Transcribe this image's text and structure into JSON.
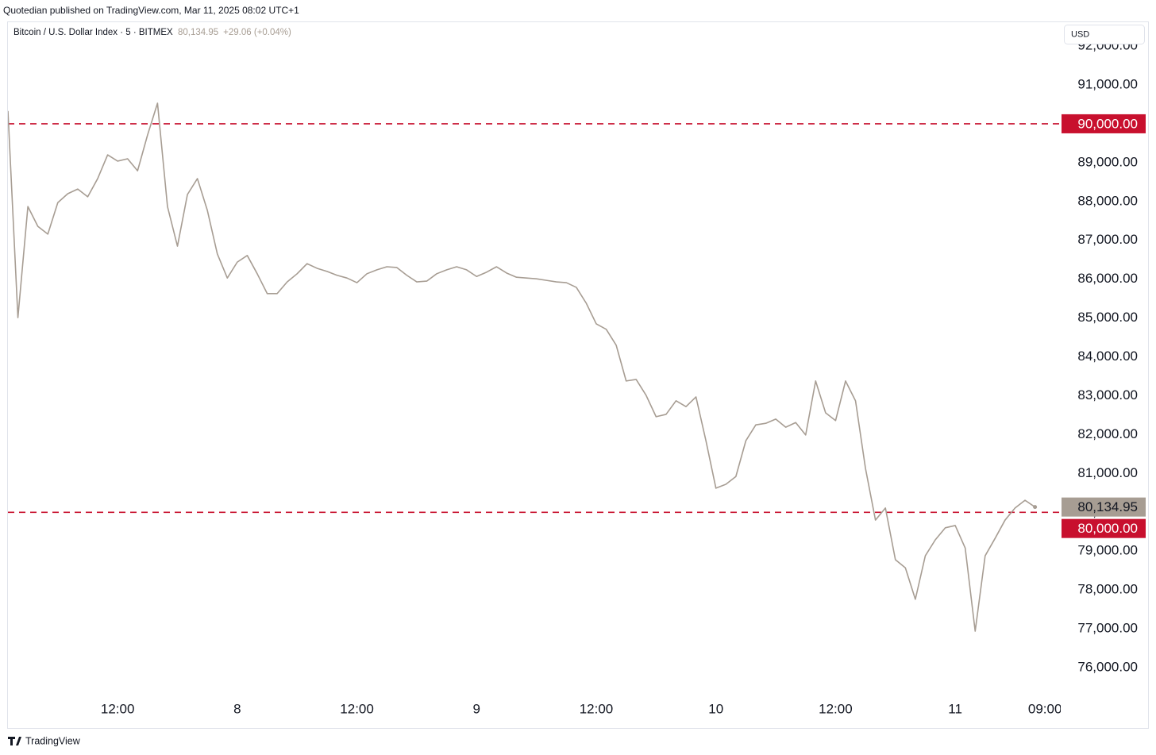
{
  "header": {
    "published": "Quotedian published on TradingView.com, Mar 11, 2025 08:02 UTC+1",
    "footer": "TradingView"
  },
  "chart_data": {
    "type": "line",
    "title": "Bitcoin / U.S. Dollar Index · 5 · BITMEX",
    "last_price": {
      "value": 80134.95,
      "label": "80,134.95"
    },
    "change": "+29.06 (+0.04%)",
    "currency": "USD",
    "x": [
      "7 01:00",
      "7 02:00",
      "7 03:00",
      "7 04:00",
      "7 05:00",
      "7 06:00",
      "7 07:00",
      "7 08:00",
      "7 09:00",
      "7 10:00",
      "7 11:00",
      "7 12:00",
      "7 13:00",
      "7 14:00",
      "7 15:00",
      "7 16:00",
      "7 17:00",
      "7 18:00",
      "7 19:00",
      "7 20:00",
      "7 21:00",
      "7 22:00",
      "7 23:00",
      "8 00:00",
      "8 01:00",
      "8 02:00",
      "8 03:00",
      "8 04:00",
      "8 05:00",
      "8 06:00",
      "8 07:00",
      "8 08:00",
      "8 09:00",
      "8 10:00",
      "8 11:00",
      "8 12:00",
      "8 13:00",
      "8 14:00",
      "8 15:00",
      "8 16:00",
      "8 17:00",
      "8 18:00",
      "8 19:00",
      "8 20:00",
      "8 21:00",
      "8 22:00",
      "8 23:00",
      "9 00:00",
      "9 01:00",
      "9 02:00",
      "9 03:00",
      "9 04:00",
      "9 05:00",
      "9 06:00",
      "9 07:00",
      "9 08:00",
      "9 09:00",
      "9 10:00",
      "9 11:00",
      "9 12:00",
      "9 13:00",
      "9 14:00",
      "9 15:00",
      "9 16:00",
      "9 17:00",
      "9 18:00",
      "9 19:00",
      "9 20:00",
      "9 21:00",
      "9 22:00",
      "9 23:00",
      "10 00:00",
      "10 01:00",
      "10 02:00",
      "10 03:00",
      "10 04:00",
      "10 05:00",
      "10 06:00",
      "10 07:00",
      "10 08:00",
      "10 09:00",
      "10 10:00",
      "10 11:00",
      "10 12:00",
      "10 13:00",
      "10 14:00",
      "10 15:00",
      "10 16:00",
      "10 17:00",
      "10 18:00",
      "10 19:00",
      "10 20:00",
      "10 21:00",
      "10 22:00",
      "10 23:00",
      "11 00:00",
      "11 01:00",
      "11 02:00",
      "11 03:00",
      "11 04:00",
      "11 05:00",
      "11 06:00",
      "11 07:00",
      "11 08:00"
    ],
    "series": [
      {
        "name": "Bitcoin / U.S. Dollar Index",
        "color": "#a79d93",
        "values": [
          90330,
          85010,
          87870,
          87360,
          87160,
          87970,
          88200,
          88320,
          88120,
          88590,
          89200,
          89040,
          89100,
          88790,
          89710,
          90530,
          87870,
          86850,
          88180,
          88590,
          87770,
          86650,
          86030,
          86440,
          86610,
          86140,
          85630,
          85630,
          85930,
          86140,
          86400,
          86280,
          86200,
          86100,
          86030,
          85910,
          86140,
          86240,
          86320,
          86300,
          86100,
          85930,
          85950,
          86140,
          86240,
          86320,
          86240,
          86070,
          86180,
          86320,
          86160,
          86050,
          86030,
          86010,
          85970,
          85930,
          85910,
          85790,
          85380,
          84850,
          84710,
          84300,
          83380,
          83420,
          83010,
          82460,
          82520,
          82870,
          82720,
          82970,
          81840,
          80620,
          80720,
          80920,
          81840,
          82250,
          82290,
          82400,
          82190,
          82310,
          81990,
          83380,
          82560,
          82360,
          83380,
          82870,
          81130,
          79800,
          80110,
          78780,
          78570,
          77760,
          78880,
          79290,
          79600,
          79660,
          79080,
          76940,
          78880,
          79330,
          79800,
          80110,
          80310,
          80134.95
        ]
      }
    ],
    "hlines": [
      {
        "value": 90000,
        "label": "90,000.00",
        "color": "#c8102e"
      },
      {
        "value": 80000,
        "label": "80,000.00",
        "color": "#c8102e"
      }
    ],
    "xlim": [
      "7 01:00",
      "11 10:30"
    ],
    "xticks": [
      {
        "value": "7 12:00",
        "label": "12:00"
      },
      {
        "value": "8 00:00",
        "label": "8"
      },
      {
        "value": "8 12:00",
        "label": "12:00"
      },
      {
        "value": "9 00:00",
        "label": "9"
      },
      {
        "value": "9 12:00",
        "label": "12:00"
      },
      {
        "value": "10 00:00",
        "label": "10"
      },
      {
        "value": "10 12:00",
        "label": "12:00"
      },
      {
        "value": "11 00:00",
        "label": "11"
      },
      {
        "value": "11 09:00",
        "label": "09:00"
      }
    ],
    "ylim": [
      74400,
      92600
    ],
    "yticks": [
      {
        "value": 92000,
        "label": "92,000.00"
      },
      {
        "value": 91000,
        "label": "91,000.00"
      },
      {
        "value": 90000,
        "label": "90,000.00"
      },
      {
        "value": 89000,
        "label": "89,000.00"
      },
      {
        "value": 88000,
        "label": "88,000.00"
      },
      {
        "value": 87000,
        "label": "87,000.00"
      },
      {
        "value": 86000,
        "label": "86,000.00"
      },
      {
        "value": 85000,
        "label": "85,000.00"
      },
      {
        "value": 84000,
        "label": "84,000.00"
      },
      {
        "value": 83000,
        "label": "83,000.00"
      },
      {
        "value": 82000,
        "label": "82,000.00"
      },
      {
        "value": 81000,
        "label": "81,000.00"
      },
      {
        "value": 80000,
        "label": "80,000.00"
      },
      {
        "value": 79000,
        "label": "79,000.00"
      },
      {
        "value": 78000,
        "label": "78,000.00"
      },
      {
        "value": 77000,
        "label": "77,000.00"
      },
      {
        "value": 76000,
        "label": "76,000.00"
      }
    ],
    "grid": false
  }
}
